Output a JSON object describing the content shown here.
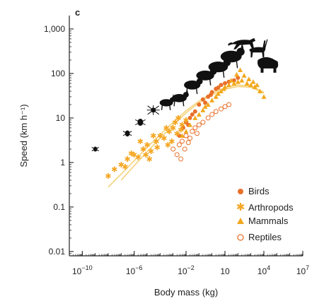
{
  "chart_data": {
    "type": "scatter",
    "panel_label": "c",
    "xlabel": "Body mass (kg)",
    "ylabel": "Speed (km h⁻¹)",
    "xscale": "log",
    "yscale": "log",
    "xlim": [
      1e-11,
      10000000.0
    ],
    "ylim": [
      0.008,
      2000
    ],
    "x_ticks": [
      {
        "value": 1e-10,
        "base": "10",
        "exp": "−10"
      },
      {
        "value": 1e-06,
        "base": "10",
        "exp": "−6"
      },
      {
        "value": 0.01,
        "base": "10",
        "exp": "−2"
      },
      {
        "value": 10,
        "base": "10",
        "exp": ""
      },
      {
        "value": 10000,
        "base": "10",
        "exp": "4"
      },
      {
        "value": 10000000.0,
        "base": "10",
        "exp": "7"
      }
    ],
    "y_ticks": [
      {
        "value": 0.01,
        "label": "0.01"
      },
      {
        "value": 0.1,
        "label": "0.1"
      },
      {
        "value": 1,
        "label": "1"
      },
      {
        "value": 10,
        "label": "10"
      },
      {
        "value": 100,
        "label": "100"
      },
      {
        "value": 1000,
        "label": "1,000"
      }
    ],
    "legend_position": "bottom-right",
    "series": [
      {
        "name": "Birds",
        "marker": "filled-circle",
        "color": "#e8702a",
        "points": [
          [
            0.003,
            4
          ],
          [
            0.006,
            6
          ],
          [
            0.01,
            8
          ],
          [
            0.02,
            10
          ],
          [
            0.05,
            14
          ],
          [
            0.1,
            20
          ],
          [
            0.2,
            26
          ],
          [
            0.5,
            30
          ],
          [
            1,
            38
          ],
          [
            2,
            45
          ],
          [
            5,
            55
          ],
          [
            10,
            60
          ],
          [
            50,
            70
          ],
          [
            100,
            80
          ],
          [
            0.015,
            7
          ],
          [
            0.03,
            12
          ],
          [
            0.3,
            22
          ],
          [
            0.8,
            33
          ],
          [
            3,
            48
          ],
          [
            20,
            65
          ]
        ]
      },
      {
        "name": "Arthropods",
        "marker": "asterisk",
        "color": "#f5a623",
        "points": [
          [
            1e-08,
            0.5
          ],
          [
            3e-08,
            0.7
          ],
          [
            1e-07,
            0.9
          ],
          [
            3e-07,
            1.2
          ],
          [
            1e-06,
            1.5
          ],
          [
            2e-06,
            1.3
          ],
          [
            5e-06,
            2
          ],
          [
            1e-05,
            2.5
          ],
          [
            2e-05,
            1.8
          ],
          [
            5e-05,
            3
          ],
          [
            0.0001,
            4
          ],
          [
            0.0002,
            3.5
          ],
          [
            0.0005,
            5
          ],
          [
            0.001,
            6
          ],
          [
            0.002,
            4.5
          ],
          [
            0.005,
            7
          ],
          [
            3e-06,
            3
          ],
          [
            8e-06,
            1.5
          ],
          [
            3e-05,
            4
          ],
          [
            6e-05,
            2.2
          ],
          [
            0.0003,
            6
          ],
          [
            0.0008,
            3
          ],
          [
            0.0015,
            8
          ],
          [
            0.004,
            5.5
          ],
          [
            0.01,
            9
          ],
          [
            2e-07,
            0.8
          ],
          [
            6e-07,
            1.6
          ],
          [
            1.5e-05,
            1.2
          ],
          [
            0.0004,
            2.5
          ],
          [
            0.0025,
            10
          ]
        ]
      },
      {
        "name": "Mammals",
        "marker": "triangle",
        "color": "#f2a81d",
        "points": [
          [
            0.005,
            4
          ],
          [
            0.01,
            5
          ],
          [
            0.02,
            7
          ],
          [
            0.05,
            10
          ],
          [
            0.1,
            12
          ],
          [
            0.2,
            15
          ],
          [
            0.5,
            20
          ],
          [
            1,
            25
          ],
          [
            2,
            30
          ],
          [
            5,
            40
          ],
          [
            10,
            50
          ],
          [
            20,
            55
          ],
          [
            50,
            60
          ],
          [
            100,
            65
          ],
          [
            200,
            70
          ],
          [
            500,
            60
          ],
          [
            1000,
            55
          ],
          [
            2000,
            50
          ],
          [
            5000,
            40
          ],
          [
            10000,
            30
          ],
          [
            3,
            35
          ],
          [
            8,
            45
          ],
          [
            30,
            70
          ],
          [
            80,
            95
          ],
          [
            150,
            120
          ],
          [
            300,
            90
          ],
          [
            700,
            75
          ],
          [
            1500,
            65
          ],
          [
            3000,
            55
          ],
          [
            0.3,
            18
          ]
        ]
      },
      {
        "name": "Reptiles",
        "marker": "open-circle",
        "color": "#e8702a",
        "points": [
          [
            0.001,
            2
          ],
          [
            0.002,
            1.5
          ],
          [
            0.003,
            2.5
          ],
          [
            0.005,
            3
          ],
          [
            0.008,
            2
          ],
          [
            0.01,
            4
          ],
          [
            0.02,
            3.5
          ],
          [
            0.03,
            5
          ],
          [
            0.05,
            6
          ],
          [
            0.1,
            7
          ],
          [
            0.2,
            8
          ],
          [
            0.5,
            10
          ],
          [
            1,
            12
          ],
          [
            2,
            14
          ],
          [
            5,
            16
          ],
          [
            10,
            18
          ],
          [
            20,
            20
          ],
          [
            0.004,
            1.2
          ],
          [
            0.015,
            2.8
          ],
          [
            0.07,
            4.5
          ]
        ]
      }
    ],
    "fit_curves": [
      {
        "color": "#f5d27a",
        "points": [
          [
            1e-08,
            0.28
          ],
          [
            1e-07,
            0.55
          ],
          [
            1e-06,
            1.1
          ],
          [
            1e-05,
            2.2
          ],
          [
            0.0001,
            4.2
          ],
          [
            0.001,
            8
          ],
          [
            0.01,
            14.5
          ],
          [
            0.1,
            24
          ],
          [
            1,
            36
          ],
          [
            10,
            48
          ],
          [
            100,
            55
          ],
          [
            1000,
            52
          ],
          [
            10000,
            38
          ]
        ]
      },
      {
        "color": "#f5d27a",
        "points": [
          [
            1e-07,
            0.4
          ],
          [
            1e-06,
            0.85
          ],
          [
            1e-05,
            1.75
          ],
          [
            0.0001,
            3.5
          ],
          [
            0.001,
            7
          ],
          [
            0.01,
            13
          ],
          [
            0.1,
            22
          ],
          [
            1,
            33
          ],
          [
            10,
            44
          ],
          [
            100,
            51
          ],
          [
            1000,
            49
          ],
          [
            10000,
            36
          ]
        ]
      }
    ],
    "silhouettes": [
      {
        "icon": "ant-icon",
        "x": 1e-09,
        "y": 2
      },
      {
        "icon": "beetle-icon",
        "x": 3e-07,
        "y": 4.5
      },
      {
        "icon": "beetle-icon",
        "x": 3e-06,
        "y": 8
      },
      {
        "icon": "spider-icon",
        "x": 3e-05,
        "y": 15
      },
      {
        "icon": "frog-icon",
        "x": 0.0003,
        "y": 22
      },
      {
        "icon": "mouse-icon",
        "x": 0.003,
        "y": 28
      },
      {
        "icon": "lizard-icon",
        "x": 0.03,
        "y": 55
      },
      {
        "icon": "squirrel-icon",
        "x": 0.3,
        "y": 90
      },
      {
        "icon": "rabbit-icon",
        "x": 3,
        "y": 140
      },
      {
        "icon": "dog-icon",
        "x": 30,
        "y": 240
      },
      {
        "icon": "cheetah-icon",
        "x": 300,
        "y": 450
      },
      {
        "icon": "deer-icon",
        "x": 3000,
        "y": 330
      },
      {
        "icon": "elephant-icon",
        "x": 20000,
        "y": 150
      }
    ]
  }
}
